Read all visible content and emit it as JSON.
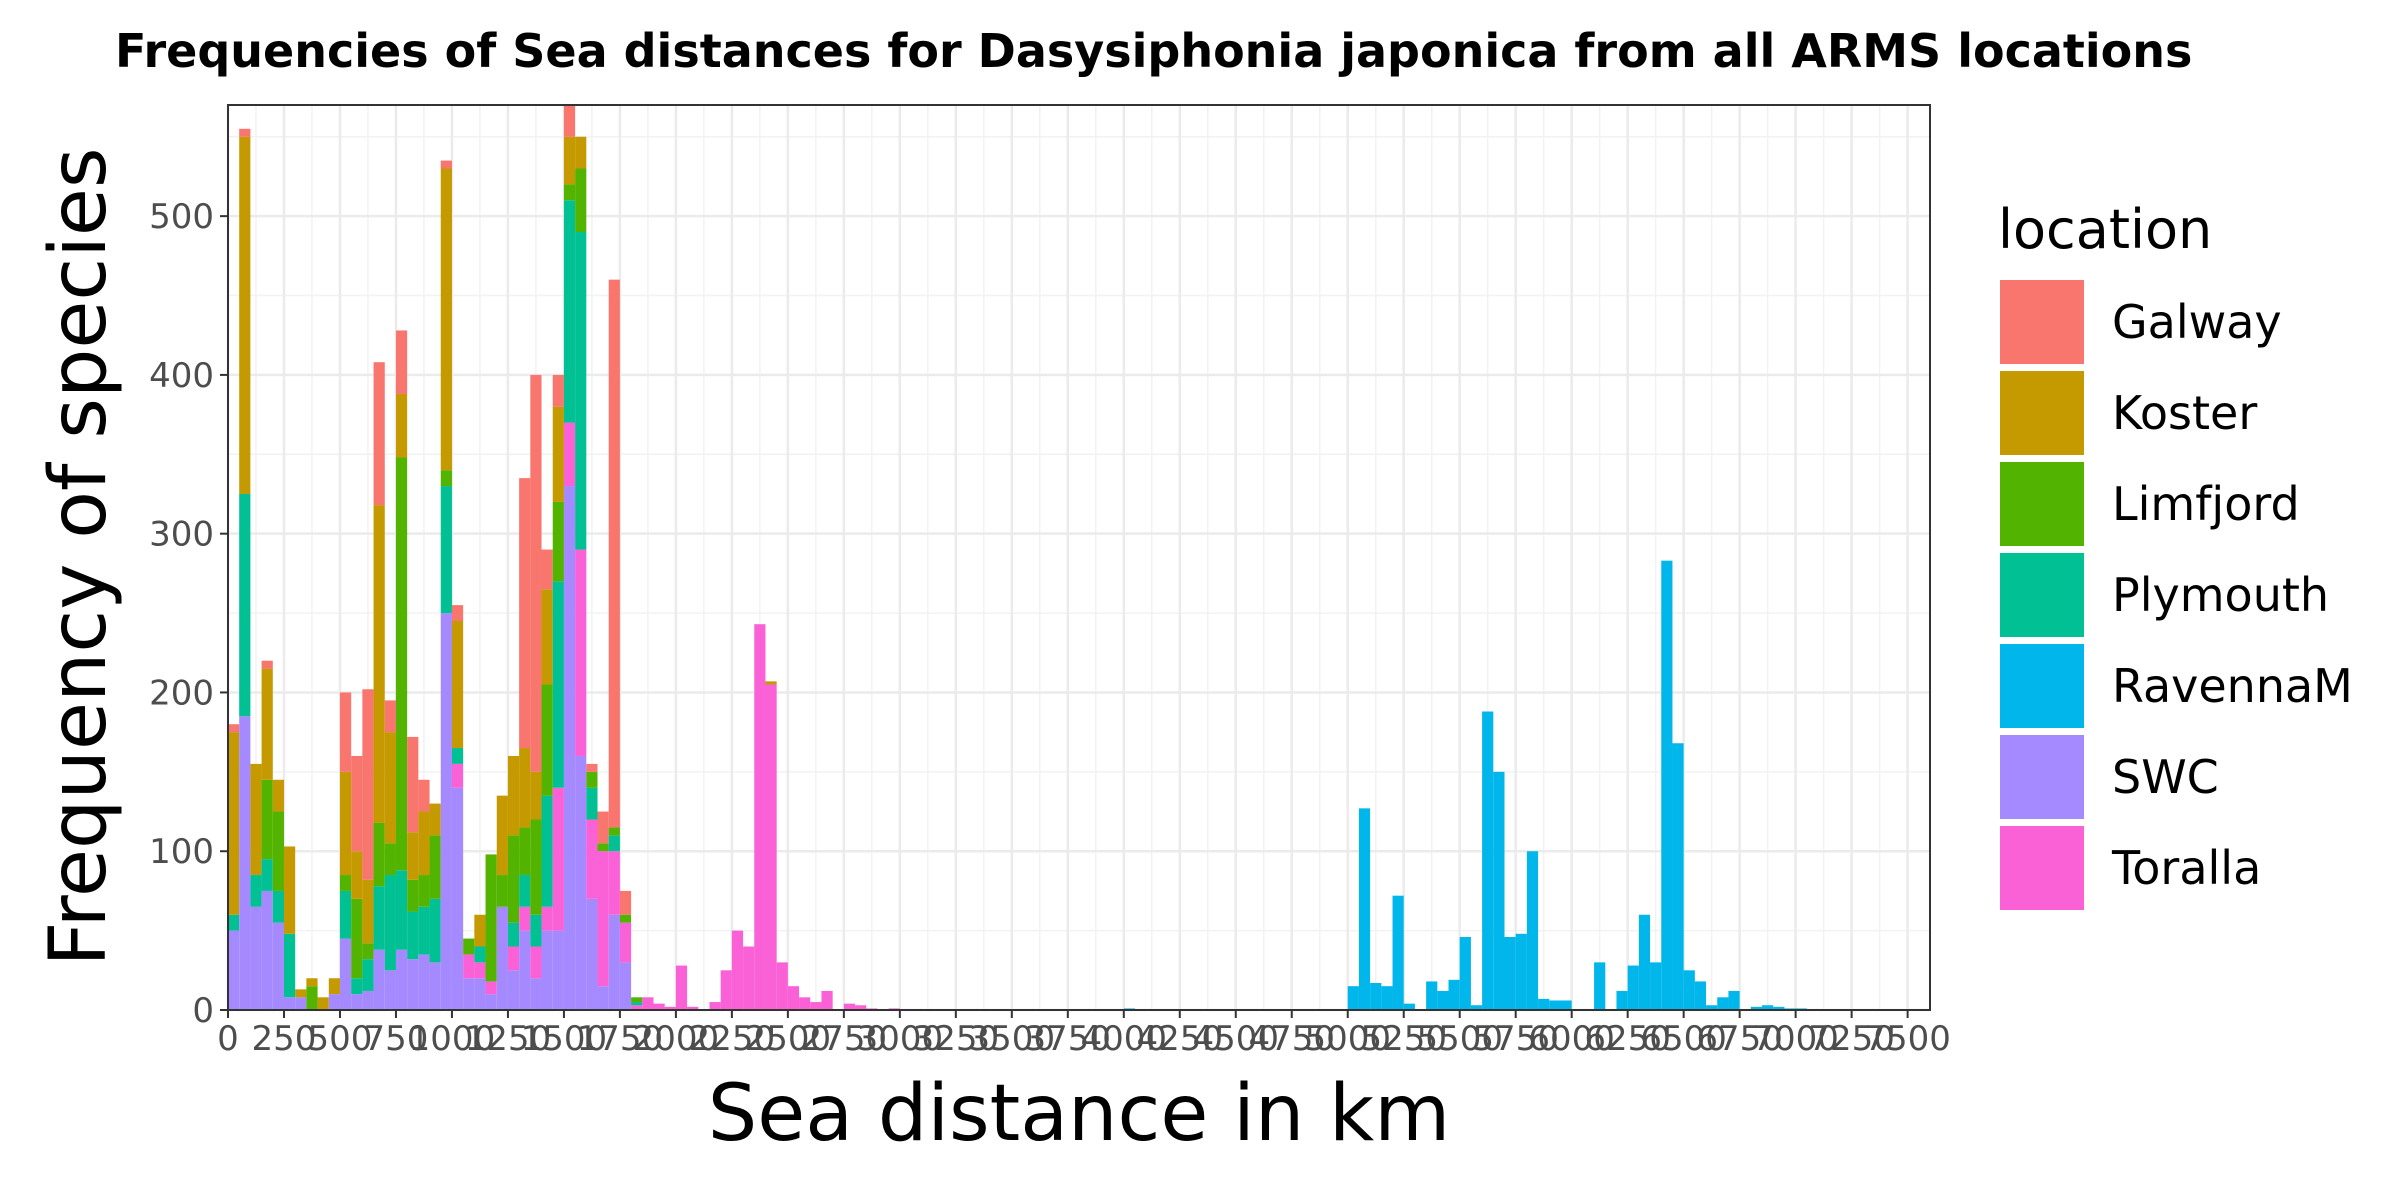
{
  "chart_data": {
    "type": "bar",
    "stacked": true,
    "title": "Frequencies of Sea distances for Dasysiphonia japonica from all ARMS locations",
    "xlabel": "Sea distance in km",
    "ylabel": "Frequency of species",
    "xlim": [
      0,
      7600
    ],
    "ylim": [
      0,
      570
    ],
    "bin_width": 50,
    "x_ticks": [
      0,
      250,
      500,
      750,
      1000,
      1250,
      1500,
      1750,
      2000,
      2250,
      2500,
      2750,
      3000,
      3250,
      3500,
      3750,
      4000,
      4250,
      4500,
      4750,
      5000,
      5250,
      5500,
      5750,
      6000,
      6250,
      6500,
      6750,
      7000,
      7250,
      7500
    ],
    "x_tick_labels": [
      "0",
      "250",
      "500",
      "750",
      "1000",
      "1250",
      "1500",
      "1750",
      "2000",
      "2250",
      "2500",
      "2750",
      "3000",
      "3250",
      "3500",
      "3750",
      "4000",
      "4250",
      "4500",
      "4750",
      "5000",
      "5250",
      "5500",
      "5750",
      "6000",
      "6250",
      "6500",
      "6750",
      "7000",
      "7250",
      "7500"
    ],
    "y_ticks": [
      0,
      100,
      200,
      300,
      400,
      500
    ],
    "y_tick_labels": [
      "0",
      "100",
      "200",
      "300",
      "400",
      "500"
    ],
    "grid": true,
    "legend": {
      "title": "location",
      "position": "right",
      "entries": [
        "Galway",
        "Koster",
        "Limfjord",
        "Plymouth",
        "RavennaM",
        "SWC",
        "Toralla"
      ]
    },
    "colors": {
      "Galway": "#F8766D",
      "Koster": "#C49A00",
      "Limfjord": "#53B400",
      "Plymouth": "#00C094",
      "RavennaM": "#00B6EB",
      "SWC": "#A58AFF",
      "Toralla": "#FB61D7"
    },
    "x": [
      0,
      50,
      100,
      150,
      200,
      250,
      300,
      350,
      400,
      450,
      500,
      550,
      600,
      650,
      700,
      750,
      800,
      850,
      900,
      950,
      1000,
      1050,
      1100,
      1150,
      1200,
      1250,
      1300,
      1350,
      1400,
      1450,
      1500,
      1550,
      1600,
      1650,
      1700,
      1750,
      1800,
      1850,
      1900,
      1950,
      2000,
      2050,
      2100,
      2150,
      2200,
      2250,
      2300,
      2350,
      2400,
      2450,
      2500,
      2550,
      2600,
      2650,
      2700,
      2750,
      2800,
      2850,
      2900,
      2950,
      3000,
      3050,
      3100,
      3150,
      3200,
      3250,
      3300,
      3350,
      3400,
      3450,
      3500,
      3550,
      3600,
      3650,
      3700,
      3750,
      3800,
      3850,
      3900,
      3950,
      4000,
      4050,
      4100,
      4150,
      4200,
      4250,
      4300,
      4350,
      4400,
      4450,
      4500,
      4550,
      4600,
      4650,
      4700,
      4750,
      4800,
      4850,
      4900,
      4950,
      5000,
      5050,
      5100,
      5150,
      5200,
      5250,
      5300,
      5350,
      5400,
      5450,
      5500,
      5550,
      5600,
      5650,
      5700,
      5750,
      5800,
      5850,
      5900,
      5950,
      6000,
      6050,
      6100,
      6150,
      6200,
      6250,
      6300,
      6350,
      6400,
      6450,
      6500,
      6550,
      6600,
      6650,
      6700,
      6750,
      6800,
      6850,
      6900,
      6950,
      7000,
      7050,
      7100,
      7150,
      7200,
      7250,
      7300,
      7350,
      7400,
      7450,
      7500
    ],
    "series": [
      {
        "name": "SWC",
        "values": [
          50,
          185,
          65,
          75,
          55,
          8,
          8,
          0,
          0,
          10,
          45,
          10,
          12,
          38,
          25,
          38,
          32,
          35,
          30,
          250,
          140,
          20,
          20,
          10,
          65,
          25,
          50,
          20,
          50,
          50,
          330,
          160,
          70,
          15,
          60,
          30,
          0,
          0,
          0,
          0,
          0,
          0,
          0,
          0,
          0,
          0,
          0,
          0,
          0,
          0,
          0,
          0,
          0,
          0,
          0,
          0,
          0,
          0,
          0,
          0,
          0,
          0,
          0,
          0,
          0,
          0,
          0,
          0,
          0,
          0,
          0,
          0,
          0,
          0,
          0,
          0,
          0,
          0,
          0,
          0,
          0,
          0,
          0,
          0,
          0,
          0,
          0,
          0,
          0,
          0,
          0,
          0,
          0,
          0,
          0,
          0,
          0,
          0,
          0,
          0,
          0,
          0,
          0,
          0,
          0,
          0,
          0,
          0,
          0,
          0,
          0,
          0,
          0,
          0,
          0,
          0,
          0,
          0,
          0,
          0,
          0,
          0,
          0,
          0,
          0,
          0,
          0,
          0,
          0,
          0,
          0,
          0,
          0,
          0,
          0,
          0,
          0,
          0,
          0,
          0,
          0,
          0,
          0,
          0,
          0,
          0,
          0,
          0,
          0,
          0,
          0
        ]
      },
      {
        "name": "Toralla",
        "values": [
          0,
          0,
          0,
          0,
          0,
          0,
          0,
          0,
          0,
          0,
          0,
          0,
          0,
          0,
          0,
          0,
          0,
          0,
          0,
          0,
          15,
          15,
          10,
          8,
          0,
          15,
          15,
          20,
          15,
          90,
          40,
          130,
          50,
          85,
          40,
          25,
          3,
          8,
          4,
          2,
          28,
          2,
          0,
          5,
          25,
          50,
          40,
          243,
          205,
          30,
          15,
          8,
          5,
          12,
          0,
          4,
          3,
          1,
          0,
          1,
          0,
          0,
          0,
          0,
          0,
          0,
          0,
          0,
          0,
          0,
          0,
          0,
          0,
          0,
          0,
          0,
          0,
          0,
          0,
          0,
          0,
          0,
          0,
          0,
          0,
          0,
          0,
          0,
          0,
          0,
          0,
          0,
          0,
          0,
          0,
          0,
          0,
          0,
          0,
          0,
          0,
          0,
          0,
          0,
          0,
          0,
          0,
          0,
          0,
          0,
          0,
          0,
          0,
          0,
          0,
          0,
          0,
          0,
          0,
          0,
          0,
          0,
          0,
          0,
          0,
          0,
          0,
          0,
          0,
          0,
          0,
          0,
          0,
          0,
          0,
          0,
          0,
          0,
          0,
          0,
          0,
          0,
          0,
          0,
          0,
          0,
          0,
          0,
          0,
          0,
          0
        ]
      },
      {
        "name": "RavennaM",
        "values": [
          0,
          0,
          0,
          0,
          0,
          0,
          0,
          0,
          0,
          0,
          0,
          0,
          0,
          0,
          0,
          0,
          0,
          0,
          0,
          0,
          0,
          0,
          0,
          0,
          0,
          0,
          0,
          0,
          0,
          0,
          0,
          0,
          0,
          0,
          0,
          0,
          0,
          0,
          0,
          0,
          0,
          0,
          0,
          0,
          0,
          0,
          0,
          0,
          0,
          0,
          0,
          0,
          0,
          0,
          0,
          0,
          0,
          0,
          0,
          0,
          0,
          0,
          0,
          0,
          0,
          0,
          0,
          0,
          0,
          0,
          0,
          0,
          0,
          0,
          0,
          0,
          0,
          0,
          0,
          0,
          1,
          0,
          0,
          0,
          0,
          0,
          0,
          0,
          0,
          0,
          0,
          0,
          0,
          0,
          0,
          0,
          0,
          0,
          0,
          0,
          15,
          127,
          17,
          15,
          72,
          4,
          0,
          18,
          12,
          19,
          46,
          3,
          188,
          150,
          46,
          48,
          100,
          7,
          6,
          6,
          0,
          0,
          30,
          0,
          12,
          28,
          60,
          30,
          283,
          168,
          25,
          18,
          3,
          8,
          12,
          0,
          2,
          3,
          2,
          1,
          1,
          0,
          0,
          0,
          0,
          0,
          0,
          0,
          0,
          0,
          0
        ]
      },
      {
        "name": "Plymouth",
        "values": [
          10,
          140,
          20,
          20,
          20,
          40,
          0,
          0,
          0,
          0,
          30,
          10,
          20,
          40,
          60,
          50,
          30,
          30,
          40,
          80,
          10,
          0,
          10,
          0,
          0,
          15,
          20,
          20,
          70,
          130,
          140,
          200,
          20,
          0,
          10,
          0,
          2,
          0,
          0,
          0,
          0,
          0,
          0,
          0,
          0,
          0,
          0,
          0,
          0,
          0,
          0,
          0,
          0,
          0,
          0,
          0,
          0,
          0,
          0,
          0,
          0,
          0,
          0,
          0,
          0,
          0,
          0,
          0,
          0,
          0,
          0,
          0,
          0,
          0,
          0,
          0,
          0,
          0,
          0,
          0,
          0,
          0,
          0,
          0,
          0,
          0,
          0,
          0,
          0,
          0,
          0,
          0,
          0,
          0,
          0,
          0,
          0,
          0,
          0,
          0,
          0,
          0,
          0,
          0,
          0,
          0,
          0,
          0,
          0,
          0,
          0,
          0,
          0,
          0,
          0,
          0,
          0,
          0,
          0,
          0,
          0,
          0,
          0,
          0,
          0,
          0,
          0,
          0,
          0,
          0,
          0,
          0,
          0,
          0,
          0,
          0,
          0,
          0,
          0,
          0,
          0,
          0,
          0,
          0,
          0,
          0,
          0,
          0,
          0,
          0,
          0
        ]
      },
      {
        "name": "Limfjord",
        "values": [
          0,
          0,
          0,
          50,
          50,
          0,
          0,
          15,
          0,
          0,
          10,
          50,
          10,
          40,
          20,
          260,
          20,
          20,
          40,
          10,
          0,
          10,
          0,
          80,
          20,
          55,
          30,
          60,
          70,
          50,
          10,
          40,
          10,
          5,
          5,
          5,
          3,
          0,
          0,
          0,
          0,
          0,
          0,
          0,
          0,
          0,
          0,
          0,
          0,
          0,
          0,
          0,
          0,
          0,
          0,
          0,
          0,
          0,
          0,
          0,
          0,
          0,
          0,
          0,
          0,
          0,
          0,
          0,
          0,
          0,
          0,
          0,
          0,
          0,
          0,
          0,
          0,
          0,
          0,
          0,
          0,
          0,
          0,
          0,
          0,
          0,
          0,
          0,
          0,
          0,
          0,
          0,
          0,
          0,
          0,
          0,
          0,
          0,
          0,
          0,
          0,
          0,
          0,
          0,
          0,
          0,
          0,
          0,
          0,
          0,
          0,
          0,
          0,
          0,
          0,
          0,
          0,
          0,
          0,
          0,
          0,
          0,
          0,
          0,
          0,
          0,
          0,
          0,
          0,
          0,
          0,
          0,
          0,
          0,
          0,
          0,
          0,
          0,
          0,
          0,
          0,
          0,
          0,
          0,
          0,
          0,
          0,
          0,
          0,
          0,
          0
        ]
      },
      {
        "name": "Koster",
        "values": [
          115,
          225,
          70,
          70,
          20,
          55,
          5,
          5,
          8,
          10,
          65,
          30,
          40,
          200,
          70,
          40,
          30,
          40,
          20,
          190,
          80,
          0,
          20,
          0,
          50,
          50,
          50,
          30,
          60,
          60,
          30,
          20,
          0,
          0,
          0,
          0,
          0,
          0,
          0,
          0,
          0,
          0,
          0,
          0,
          0,
          0,
          0,
          0,
          2,
          0,
          0,
          0,
          0,
          0,
          0,
          0,
          0,
          0,
          0,
          0,
          0,
          0,
          0,
          0,
          0,
          0,
          0,
          0,
          0,
          0,
          0,
          0,
          0,
          0,
          0,
          0,
          0,
          0,
          0,
          0,
          0,
          0,
          0,
          0,
          0,
          0,
          0,
          0,
          0,
          0,
          0,
          0,
          0,
          0,
          0,
          0,
          0,
          0,
          0,
          0,
          0,
          0,
          0,
          0,
          0,
          0,
          0,
          0,
          0,
          0,
          0,
          0,
          0,
          0,
          0,
          0,
          0,
          0,
          0,
          0,
          0,
          0,
          0,
          0,
          0,
          0,
          0,
          0,
          0,
          0,
          0,
          0,
          0,
          0,
          0,
          0,
          0,
          0,
          0,
          0,
          0,
          0,
          0,
          0,
          0,
          0,
          0,
          0,
          0,
          0,
          0
        ]
      },
      {
        "name": "Galway",
        "values": [
          5,
          5,
          0,
          5,
          0,
          0,
          0,
          0,
          0,
          0,
          50,
          60,
          120,
          90,
          20,
          40,
          60,
          20,
          0,
          5,
          10,
          0,
          0,
          0,
          0,
          0,
          170,
          250,
          25,
          20,
          20,
          0,
          5,
          20,
          345,
          15,
          0,
          0,
          0,
          0,
          0,
          0,
          0,
          0,
          0,
          0,
          0,
          0,
          0,
          0,
          0,
          0,
          0,
          0,
          0,
          0,
          0,
          0,
          0,
          0,
          0,
          0,
          0,
          0,
          0,
          0,
          0,
          0,
          0,
          0,
          0,
          0,
          0,
          0,
          0,
          0,
          0,
          0,
          0,
          0,
          0,
          0,
          0,
          0,
          0,
          0,
          0,
          0,
          0,
          0,
          0,
          0,
          0,
          0,
          0,
          0,
          0,
          0,
          0,
          0,
          0,
          0,
          0,
          0,
          0,
          0,
          0,
          0,
          0,
          0,
          0,
          0,
          0,
          0,
          0,
          0,
          0,
          0,
          0,
          0,
          0,
          0,
          0,
          0,
          0,
          0,
          0,
          0,
          0,
          0,
          0,
          0,
          0,
          0,
          0,
          0,
          0,
          0,
          0,
          0,
          0,
          0,
          0,
          0,
          0,
          0,
          0,
          0,
          0,
          0,
          0
        ]
      }
    ]
  }
}
